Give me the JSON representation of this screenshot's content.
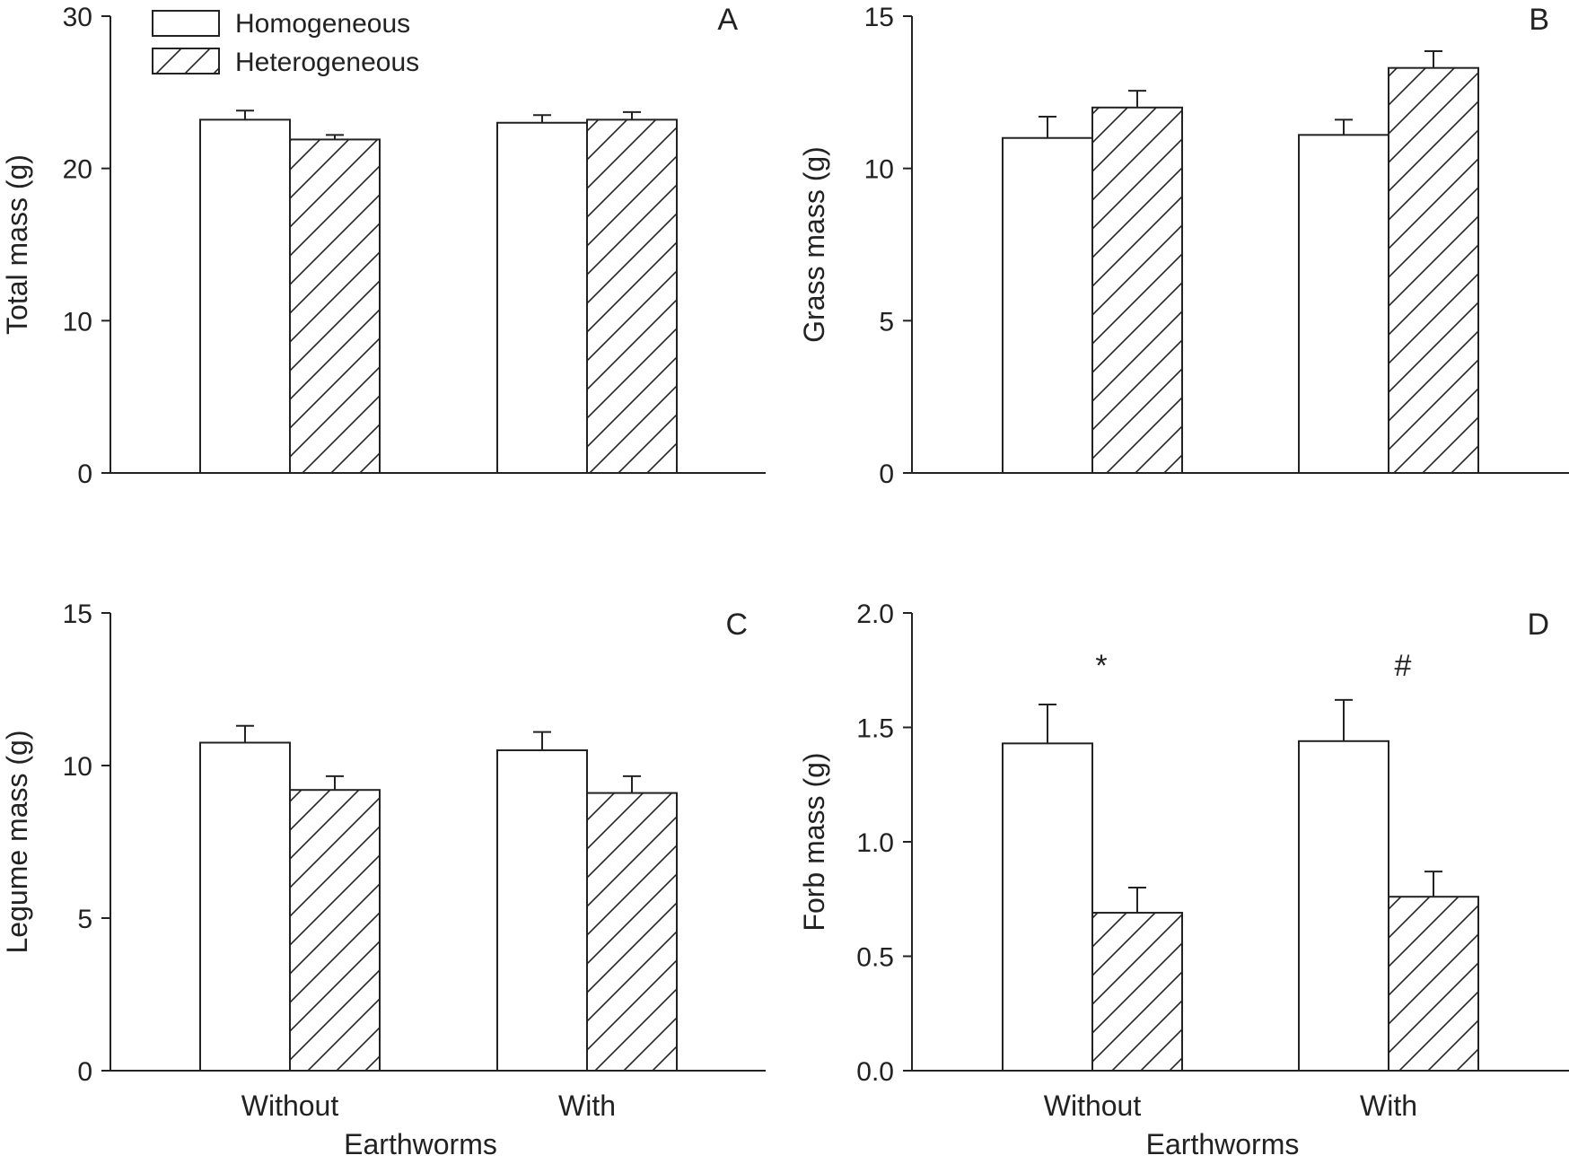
{
  "colors": {
    "ink": "#222222",
    "background": "#ffffff"
  },
  "legend": {
    "items": [
      {
        "label": "Homogeneous",
        "pattern": "solid"
      },
      {
        "label": "Heterogeneous",
        "pattern": "hatch"
      }
    ]
  },
  "chart_data": [
    {
      "type": "bar",
      "panel": "A",
      "ylabel": "Total mass (g)",
      "xlabel": "",
      "categories": [
        "",
        ""
      ],
      "ylim": [
        0,
        30
      ],
      "yticks": [
        0,
        10,
        20,
        30
      ],
      "ytick_labels": [
        "0",
        "10",
        "20",
        "30"
      ],
      "series": [
        {
          "name": "Homogeneous",
          "values": [
            23.2,
            23.0
          ],
          "errors": [
            0.6,
            0.5
          ]
        },
        {
          "name": "Heterogeneous",
          "values": [
            21.9,
            23.2
          ],
          "errors": [
            0.3,
            0.5
          ]
        }
      ],
      "annotations": [
        "",
        ""
      ]
    },
    {
      "type": "bar",
      "panel": "B",
      "ylabel": "Grass mass (g)",
      "xlabel": "",
      "categories": [
        "",
        ""
      ],
      "ylim": [
        0,
        15
      ],
      "yticks": [
        0,
        5,
        10,
        15
      ],
      "ytick_labels": [
        "0",
        "5",
        "10",
        "15"
      ],
      "series": [
        {
          "name": "Homogeneous",
          "values": [
            11.0,
            11.1
          ],
          "errors": [
            0.7,
            0.5
          ]
        },
        {
          "name": "Heterogeneous",
          "values": [
            12.0,
            13.3
          ],
          "errors": [
            0.55,
            0.55
          ]
        }
      ],
      "annotations": [
        "",
        ""
      ]
    },
    {
      "type": "bar",
      "panel": "C",
      "ylabel": "Legume mass (g)",
      "xlabel": "Earthworms",
      "categories": [
        "Without",
        "With"
      ],
      "ylim": [
        0,
        15
      ],
      "yticks": [
        0,
        5,
        10,
        15
      ],
      "ytick_labels": [
        "0",
        "5",
        "10",
        "15"
      ],
      "series": [
        {
          "name": "Homogeneous",
          "values": [
            10.75,
            10.5
          ],
          "errors": [
            0.55,
            0.6
          ]
        },
        {
          "name": "Heterogeneous",
          "values": [
            9.2,
            9.1
          ],
          "errors": [
            0.45,
            0.55
          ]
        }
      ],
      "annotations": [
        "",
        ""
      ]
    },
    {
      "type": "bar",
      "panel": "D",
      "ylabel": "Forb mass (g)",
      "xlabel": "Earthworms",
      "categories": [
        "Without",
        "With"
      ],
      "ylim": [
        0,
        2.0
      ],
      "yticks": [
        0,
        0.5,
        1.0,
        1.5,
        2.0
      ],
      "ytick_labels": [
        "0.0",
        "0.5",
        "1.0",
        "1.5",
        "2.0"
      ],
      "series": [
        {
          "name": "Homogeneous",
          "values": [
            1.43,
            1.44
          ],
          "errors": [
            0.17,
            0.18
          ]
        },
        {
          "name": "Heterogeneous",
          "values": [
            0.69,
            0.76
          ],
          "errors": [
            0.11,
            0.11
          ]
        }
      ],
      "annotations": [
        "*",
        "#"
      ]
    }
  ]
}
